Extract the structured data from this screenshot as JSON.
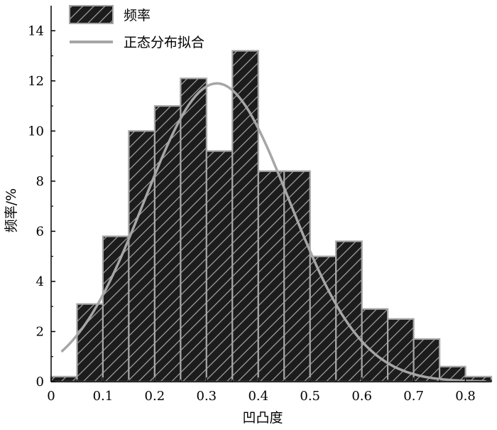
{
  "chart_data": {
    "type": "bar",
    "xlabel": "凹凸度",
    "ylabel": "频率/%",
    "xlim": [
      0,
      0.85
    ],
    "ylim": [
      0,
      15
    ],
    "x_ticks": [
      "0",
      "0.1",
      "0.2",
      "0.3",
      "0.4",
      "0.5",
      "0.6",
      "0.7",
      "0.8"
    ],
    "y_ticks": [
      "0",
      "2",
      "4",
      "6",
      "8",
      "10",
      "12",
      "14"
    ],
    "bin_width": 0.05,
    "series": [
      {
        "name": "频率",
        "kind": "histogram",
        "x": [
          0.025,
          0.075,
          0.125,
          0.175,
          0.225,
          0.275,
          0.325,
          0.375,
          0.425,
          0.475,
          0.525,
          0.575,
          0.625,
          0.675,
          0.725,
          0.775,
          0.825
        ],
        "values": [
          0.2,
          3.1,
          5.8,
          10.0,
          11.0,
          12.1,
          9.2,
          13.2,
          8.4,
          8.4,
          5.0,
          5.6,
          2.9,
          2.5,
          1.7,
          0.6,
          0.2
        ]
      },
      {
        "name": "正态分布拟合",
        "kind": "line",
        "mean": 0.32,
        "std": 0.14,
        "peak": 11.9,
        "x_range": [
          0.02,
          0.84
        ]
      }
    ],
    "legend": "top-left",
    "grid": false,
    "colors": {
      "bar_fill": "#1c1c1c",
      "bar_edge": "#a6a6a6",
      "hatch": "#a6a6a6",
      "fit_line": "#a6a6a6",
      "axis": "#000000"
    }
  }
}
